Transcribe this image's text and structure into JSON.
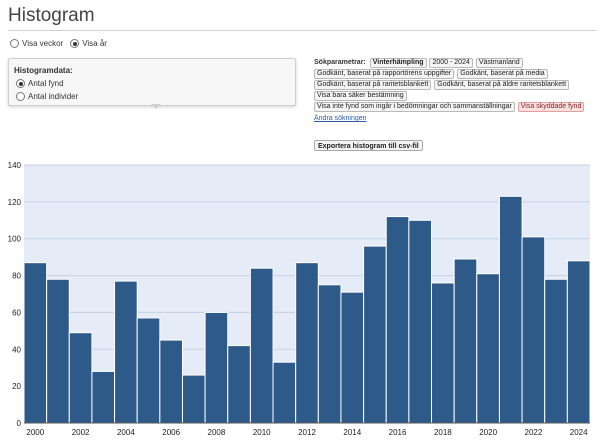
{
  "header": {
    "title": "Histogram"
  },
  "view_toggle": {
    "options": [
      {
        "label": "Visa veckor",
        "selected": false
      },
      {
        "label": "Visa år",
        "selected": true
      }
    ]
  },
  "data_panel": {
    "heading": "Histogramdata:",
    "options": [
      {
        "label": "Antal fynd",
        "selected": true
      },
      {
        "label": "Antal individer",
        "selected": false
      }
    ]
  },
  "search_params": {
    "label": "Sökparametrar:",
    "tags": [
      {
        "text": "Vinterhämpling",
        "style": "bold"
      },
      {
        "text": "2000 - 2024",
        "style": "normal"
      },
      {
        "text": "Västmanland",
        "style": "normal"
      },
      {
        "text": "Godkänt, baserat på rapportörens uppgifter",
        "style": "normal"
      },
      {
        "text": "Godkänt, baserat på media",
        "style": "normal"
      },
      {
        "text": "Godkänt, baserat på raritetsblankett",
        "style": "normal"
      },
      {
        "text": "Godkänt, baserat på äldre raritetsblankett",
        "style": "normal"
      },
      {
        "text": "Visa bara säker bestämning",
        "style": "normal"
      },
      {
        "text": "Visa inte fynd som ingår i bedömningar och sammanställningar",
        "style": "normal"
      },
      {
        "text": "Visa skyddade fynd",
        "style": "warn"
      }
    ],
    "change_link": "Ändra sökningen"
  },
  "export_button": "Exportera histogram till csv-fil",
  "colors": {
    "bar": "#2e5a8a",
    "bar_stroke": "#ffffff",
    "plot_bg": "#e6ecf7",
    "grid": "#c7d1e3"
  },
  "chart_data": {
    "type": "bar",
    "title": "",
    "xlabel": "",
    "ylabel": "",
    "ylim": [
      0,
      140
    ],
    "yticks": [
      0,
      20,
      40,
      60,
      80,
      100,
      120,
      140
    ],
    "categories": [
      "2000",
      "2001",
      "2002",
      "2003",
      "2004",
      "2005",
      "2006",
      "2007",
      "2008",
      "2009",
      "2010",
      "2011",
      "2012",
      "2013",
      "2014",
      "2015",
      "2016",
      "2017",
      "2018",
      "2019",
      "2020",
      "2021",
      "2022",
      "2023",
      "2024"
    ],
    "xtick_labels": [
      "2000",
      "2002",
      "2004",
      "2006",
      "2008",
      "2010",
      "2012",
      "2014",
      "2016",
      "2018",
      "2020",
      "2022",
      "2024"
    ],
    "values": [
      87,
      78,
      49,
      28,
      77,
      57,
      45,
      26,
      60,
      42,
      84,
      33,
      87,
      75,
      71,
      96,
      112,
      110,
      76,
      89,
      81,
      123,
      101,
      78,
      88
    ],
    "grid": true
  }
}
